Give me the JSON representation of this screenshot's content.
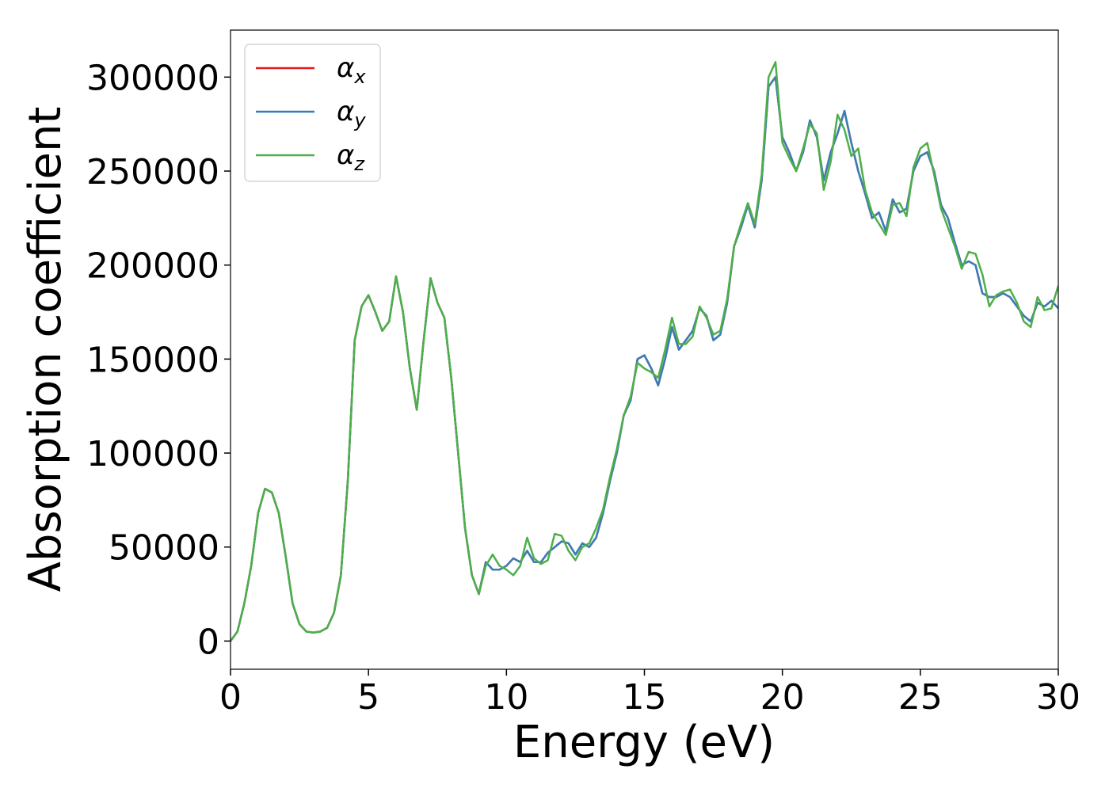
{
  "chart_data": {
    "type": "line",
    "xlabel": "Energy (eV)",
    "ylabel": "Absorption coefficient",
    "xlim": [
      0,
      30
    ],
    "ylim": [
      -15000,
      325000
    ],
    "xticks": [
      0,
      5,
      10,
      15,
      20,
      25,
      30
    ],
    "yticks": [
      0,
      50000,
      100000,
      150000,
      200000,
      250000,
      300000
    ],
    "legend": "upper left",
    "x": [
      0,
      0.25,
      0.5,
      0.75,
      1,
      1.25,
      1.5,
      1.75,
      2,
      2.25,
      2.5,
      2.75,
      3,
      3.25,
      3.5,
      3.75,
      4,
      4.25,
      4.5,
      4.75,
      5,
      5.25,
      5.5,
      5.75,
      6,
      6.25,
      6.5,
      6.75,
      7,
      7.25,
      7.5,
      7.75,
      8,
      8.25,
      8.5,
      8.75,
      9,
      9.25,
      9.5,
      9.75,
      10,
      10.25,
      10.5,
      10.75,
      11,
      11.25,
      11.5,
      11.75,
      12,
      12.25,
      12.5,
      12.75,
      13,
      13.25,
      13.5,
      13.75,
      14,
      14.25,
      14.5,
      14.75,
      15,
      15.25,
      15.5,
      15.75,
      16,
      16.25,
      16.5,
      16.75,
      17,
      17.25,
      17.5,
      17.75,
      18,
      18.25,
      18.5,
      18.75,
      19,
      19.25,
      19.5,
      19.75,
      20,
      20.25,
      20.5,
      20.75,
      21,
      21.25,
      21.5,
      21.75,
      22,
      22.25,
      22.5,
      22.75,
      23,
      23.25,
      23.5,
      23.75,
      24,
      24.25,
      24.5,
      24.75,
      25,
      25.25,
      25.5,
      25.75,
      26,
      26.25,
      26.5,
      26.75,
      27,
      27.25,
      27.5,
      27.75,
      28,
      28.25,
      28.5,
      28.75,
      29,
      29.25,
      29.5,
      29.75,
      30
    ],
    "series": [
      {
        "name": "αx",
        "color": "#e41a1c",
        "values": [
          0,
          5000,
          20000,
          40000,
          68000,
          81000,
          79000,
          68000,
          45000,
          20000,
          9000,
          5000,
          4500,
          5000,
          7000,
          15000,
          35000,
          85000,
          160000,
          178000,
          184000,
          175000,
          165000,
          170000,
          194000,
          175000,
          145000,
          123000,
          160000,
          193000,
          180000,
          172000,
          140000,
          100000,
          60000,
          35000,
          25000,
          42000,
          38000,
          38000,
          40000,
          44000,
          42000,
          48000,
          42000,
          42000,
          47000,
          50000,
          53000,
          52000,
          46000,
          52000,
          50000,
          55000,
          68000,
          85000,
          100000,
          120000,
          128000,
          150000,
          152000,
          145000,
          136000,
          150000,
          167000,
          155000,
          160000,
          165000,
          177000,
          173000,
          160000,
          163000,
          180000,
          210000,
          220000,
          232000,
          220000,
          245000,
          295000,
          300000,
          268000,
          260000,
          250000,
          260000,
          277000,
          268000,
          245000,
          260000,
          270000,
          282000,
          265000,
          250000,
          238000,
          225000,
          228000,
          218000,
          235000,
          228000,
          230000,
          250000,
          258000,
          260000,
          250000,
          232000,
          225000,
          212000,
          200000,
          202000,
          200000,
          185000,
          183000,
          183000,
          185000,
          183000,
          178000,
          173000,
          170000,
          180000,
          178000,
          181000,
          177000
        ]
      },
      {
        "name": "αy",
        "color": "#377eb8",
        "values": [
          0,
          5000,
          20000,
          40000,
          68000,
          81000,
          79000,
          68000,
          45000,
          20000,
          9000,
          5000,
          4500,
          5000,
          7000,
          15000,
          35000,
          85000,
          160000,
          178000,
          184000,
          175000,
          165000,
          170000,
          194000,
          175000,
          145000,
          123000,
          160000,
          193000,
          180000,
          172000,
          140000,
          100000,
          60000,
          35000,
          25000,
          42000,
          38000,
          38000,
          40000,
          44000,
          42000,
          48000,
          42000,
          42000,
          47000,
          50000,
          53000,
          52000,
          46000,
          52000,
          50000,
          55000,
          68000,
          85000,
          100000,
          120000,
          128000,
          150000,
          152000,
          145000,
          136000,
          150000,
          167000,
          155000,
          160000,
          165000,
          177000,
          173000,
          160000,
          163000,
          180000,
          210000,
          220000,
          232000,
          220000,
          245000,
          295000,
          300000,
          268000,
          260000,
          250000,
          260000,
          277000,
          268000,
          245000,
          260000,
          270000,
          282000,
          265000,
          250000,
          238000,
          225000,
          228000,
          218000,
          235000,
          228000,
          230000,
          250000,
          258000,
          260000,
          250000,
          232000,
          225000,
          212000,
          200000,
          202000,
          200000,
          185000,
          183000,
          183000,
          185000,
          183000,
          178000,
          173000,
          170000,
          180000,
          178000,
          181000,
          177000
        ]
      },
      {
        "name": "αz",
        "color": "#4daf4a",
        "values": [
          0,
          5000,
          20000,
          40000,
          68000,
          81000,
          79000,
          68000,
          45000,
          20000,
          9000,
          5000,
          4500,
          5000,
          7000,
          15000,
          35000,
          85000,
          160000,
          178000,
          184000,
          175000,
          165000,
          170000,
          194000,
          175000,
          145000,
          123000,
          160000,
          193000,
          180000,
          172000,
          140000,
          100000,
          60000,
          35000,
          25000,
          40000,
          46000,
          40000,
          38000,
          35000,
          40000,
          55000,
          44000,
          41000,
          43000,
          57000,
          56000,
          48000,
          43000,
          50000,
          52000,
          60000,
          70000,
          87000,
          102000,
          120000,
          130000,
          148000,
          145000,
          143000,
          140000,
          155000,
          172000,
          158000,
          158000,
          162000,
          178000,
          172000,
          163000,
          165000,
          182000,
          210000,
          222000,
          233000,
          222000,
          248000,
          300000,
          308000,
          265000,
          257000,
          250000,
          262000,
          275000,
          270000,
          240000,
          255000,
          280000,
          272000,
          258000,
          262000,
          240000,
          228000,
          222000,
          216000,
          232000,
          233000,
          226000,
          252000,
          262000,
          265000,
          248000,
          230000,
          220000,
          210000,
          198000,
          207000,
          206000,
          195000,
          178000,
          184000,
          186000,
          187000,
          180000,
          170000,
          167000,
          183000,
          176000,
          177000,
          189000
        ]
      }
    ]
  }
}
